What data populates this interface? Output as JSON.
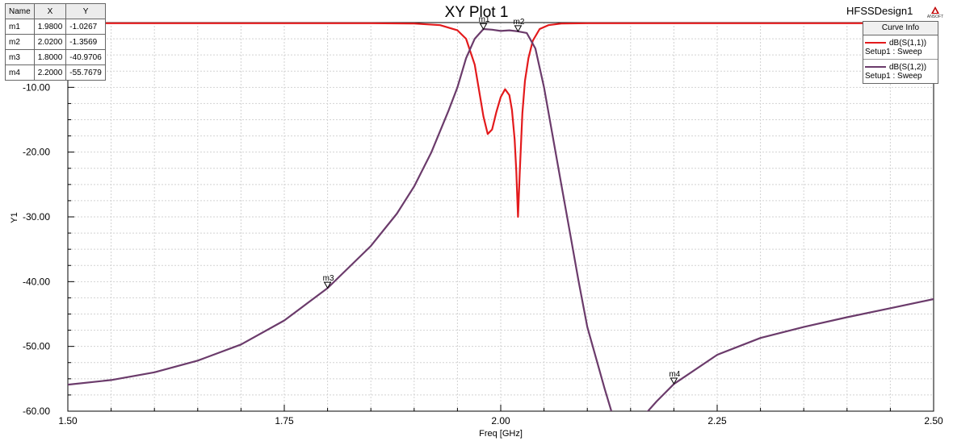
{
  "chart_data": {
    "type": "line",
    "title": "XY Plot 1",
    "design_name": "HFSSDesign1",
    "vendor_logo_text": "ANSOFT",
    "xlabel": "Freq [GHz]",
    "ylabel": "Y1",
    "xlim": [
      1.5,
      2.5
    ],
    "ylim": [
      -60,
      0
    ],
    "x_ticks": [
      1.5,
      1.75,
      2.0,
      2.25,
      2.5
    ],
    "x_tick_labels": [
      "1.50",
      "1.75",
      "2.00",
      "2.25",
      "2.50"
    ],
    "y_ticks": [
      -10,
      -20,
      -30,
      -40,
      -50,
      -60
    ],
    "y_tick_labels": [
      "-10.00",
      "-20.00",
      "-30.00",
      "-40.00",
      "-50.00",
      "-60.00"
    ],
    "grid": true,
    "legend_position": "top-right",
    "legend_title": "Curve Info",
    "series": [
      {
        "name": "dB(S(1,1))",
        "setup": "Setup1 : Sweep",
        "color": "#e31a1c",
        "points": [
          [
            1.5,
            -0.1
          ],
          [
            1.85,
            -0.1
          ],
          [
            1.9,
            -0.15
          ],
          [
            1.93,
            -0.4
          ],
          [
            1.95,
            -1.2
          ],
          [
            1.96,
            -2.5
          ],
          [
            1.97,
            -6.5
          ],
          [
            1.975,
            -10.5
          ],
          [
            1.98,
            -14.5
          ],
          [
            1.985,
            -17.2
          ],
          [
            1.99,
            -16.5
          ],
          [
            1.995,
            -13.8
          ],
          [
            2.0,
            -11.5
          ],
          [
            2.005,
            -10.3
          ],
          [
            2.01,
            -11.2
          ],
          [
            2.013,
            -13.5
          ],
          [
            2.016,
            -18.0
          ],
          [
            2.018,
            -23.0
          ],
          [
            2.02,
            -30.0
          ],
          [
            2.022,
            -23.0
          ],
          [
            2.025,
            -14.0
          ],
          [
            2.028,
            -9.0
          ],
          [
            2.032,
            -5.5
          ],
          [
            2.037,
            -2.8
          ],
          [
            2.045,
            -1.0
          ],
          [
            2.055,
            -0.4
          ],
          [
            2.07,
            -0.15
          ],
          [
            2.1,
            -0.1
          ],
          [
            2.5,
            -0.1
          ]
        ]
      },
      {
        "name": "dB(S(1,2))",
        "setup": "Setup1 : Sweep",
        "color": "#6b3b6b",
        "points": [
          [
            1.5,
            -55.9
          ],
          [
            1.55,
            -55.2
          ],
          [
            1.6,
            -54.0
          ],
          [
            1.65,
            -52.2
          ],
          [
            1.7,
            -49.7
          ],
          [
            1.75,
            -46.0
          ],
          [
            1.8,
            -41.0
          ],
          [
            1.85,
            -34.5
          ],
          [
            1.88,
            -29.5
          ],
          [
            1.9,
            -25.3
          ],
          [
            1.92,
            -20.0
          ],
          [
            1.94,
            -13.5
          ],
          [
            1.95,
            -10.0
          ],
          [
            1.96,
            -5.5
          ],
          [
            1.97,
            -2.5
          ],
          [
            1.98,
            -1.0
          ],
          [
            1.99,
            -1.1
          ],
          [
            2.0,
            -1.3
          ],
          [
            2.01,
            -1.2
          ],
          [
            2.02,
            -1.36
          ],
          [
            2.03,
            -1.6
          ],
          [
            2.04,
            -4.0
          ],
          [
            2.05,
            -10.0
          ],
          [
            2.06,
            -17.5
          ],
          [
            2.07,
            -25.0
          ],
          [
            2.08,
            -32.5
          ],
          [
            2.09,
            -40.0
          ],
          [
            2.1,
            -47.0
          ],
          [
            2.12,
            -56.5
          ],
          [
            2.13,
            -61.0
          ],
          [
            2.16,
            -61.0
          ],
          [
            2.17,
            -60.0
          ],
          [
            2.18,
            -58.5
          ],
          [
            2.2,
            -55.8
          ],
          [
            2.25,
            -51.3
          ],
          [
            2.3,
            -48.7
          ],
          [
            2.35,
            -47.0
          ],
          [
            2.4,
            -45.5
          ],
          [
            2.45,
            -44.1
          ],
          [
            2.5,
            -42.7
          ]
        ]
      }
    ],
    "markers": [
      {
        "name": "m1",
        "x": 1.98,
        "y": -1.0267,
        "x_text": "1.9800",
        "y_text": "-1.0267"
      },
      {
        "name": "m2",
        "x": 2.02,
        "y": -1.3569,
        "x_text": "2.0200",
        "y_text": "-1.3569"
      },
      {
        "name": "m3",
        "x": 1.8,
        "y": -40.9706,
        "x_text": "1.8000",
        "y_text": "-40.9706"
      },
      {
        "name": "m4",
        "x": 2.2,
        "y": -55.7679,
        "x_text": "2.2000",
        "y_text": "-55.7679"
      }
    ],
    "marker_table_headers": [
      "Name",
      "X",
      "Y"
    ]
  }
}
